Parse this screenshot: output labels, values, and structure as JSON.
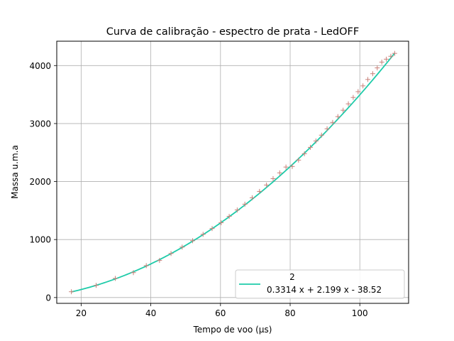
{
  "colors": {
    "fit_line": "#1ecba9",
    "markers": "#c8817a",
    "grid": "#b0b0b0",
    "axes": "#000000",
    "legend_border": "#cccccc"
  },
  "chart_data": {
    "type": "line",
    "title": "Curva de calibração - espectro de prata - LedOFF",
    "xlabel": "Tempo de voo (μs)",
    "ylabel": "Massa u.m.a",
    "xlim": [
      13,
      114
    ],
    "ylim": [
      -100,
      4420
    ],
    "x_ticks": [
      20,
      40,
      60,
      80,
      100
    ],
    "y_ticks": [
      0,
      1000,
      2000,
      3000,
      4000
    ],
    "grid": true,
    "legend_position": "lower right",
    "legend": {
      "superscript": "2",
      "label": "0.3314 x + 2.199 x - 38.52"
    },
    "fit": {
      "a": 0.3314,
      "b": 2.199,
      "c": -38.52,
      "x_range": [
        17.2,
        110
      ]
    },
    "series": [
      {
        "marker": "+",
        "x": [
          17.2,
          24.3,
          29.8,
          35.0,
          38.7,
          42.5,
          45.8,
          49.0,
          52.0,
          55.0,
          57.6,
          60.2,
          62.5,
          64.8,
          67.0,
          69.1,
          71.2,
          73.2,
          75.1,
          77.0,
          78.8,
          80.6,
          82.4,
          84.1,
          85.8,
          87.4,
          89.0,
          90.6,
          92.2,
          93.7,
          95.2,
          96.7,
          98.1,
          99.5,
          100.9,
          102.3,
          103.7,
          105.0,
          106.3,
          107.6,
          108.9,
          110.0
        ],
        "y": [
          100,
          210,
          330,
          430,
          550,
          640,
          760,
          870,
          980,
          1090,
          1190,
          1290,
          1400,
          1510,
          1610,
          1720,
          1830,
          1940,
          2050,
          2150,
          2250,
          2260,
          2370,
          2480,
          2590,
          2700,
          2800,
          2910,
          3020,
          3120,
          3230,
          3340,
          3450,
          3550,
          3650,
          3760,
          3860,
          3960,
          4060,
          4110,
          4160,
          4210
        ]
      }
    ]
  }
}
